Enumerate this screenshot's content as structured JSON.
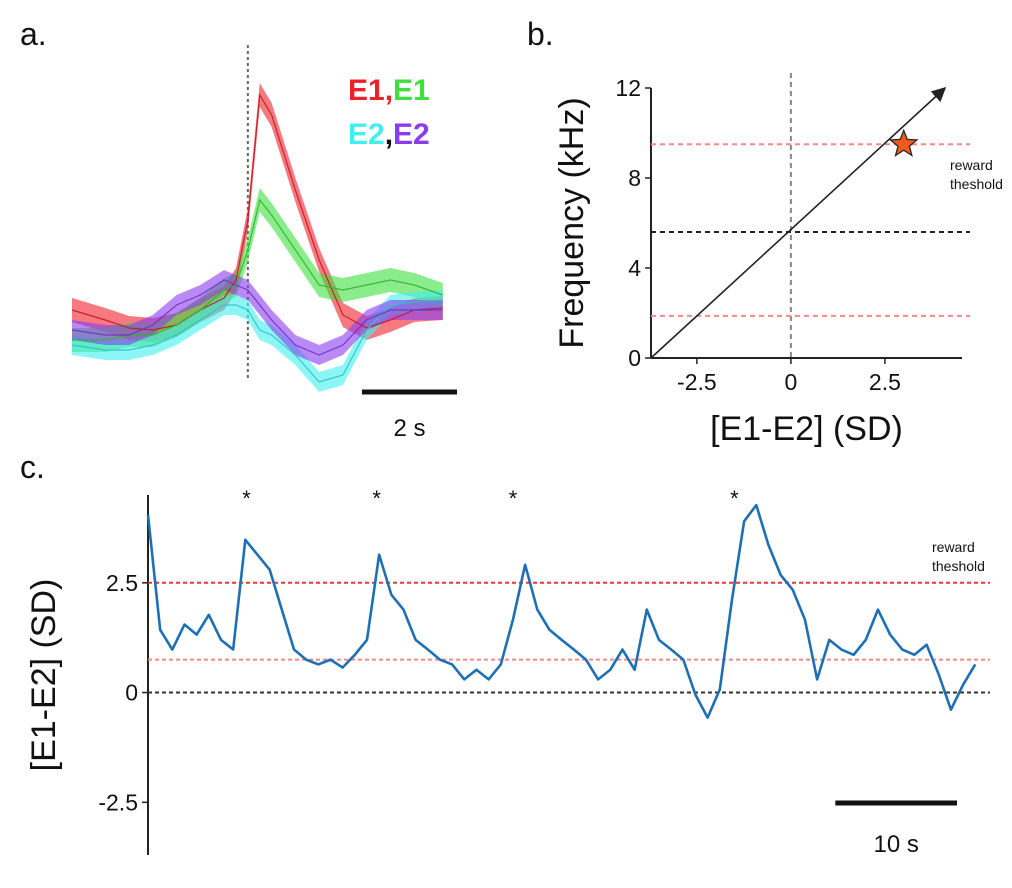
{
  "chart_data": [
    {
      "type": "band-line",
      "panel_label": "a.",
      "x": [
        -3.7,
        -3,
        -2.5,
        -2,
        -1.5,
        -1,
        -0.5,
        -0.25,
        0,
        0.25,
        0.5,
        1,
        1.5,
        2,
        2.5,
        3,
        3.5,
        4.1
      ],
      "xlim": [
        -3.7,
        4.4
      ],
      "ylim": [
        -0.2,
        3.2
      ],
      "vline": 0,
      "legend_separator": ",",
      "series": [
        {
          "name": "E1",
          "color": "#f0202a",
          "error": 0.12,
          "values": [
            0.7,
            0.6,
            0.52,
            0.5,
            0.55,
            0.7,
            0.82,
            1.0,
            1.6,
            2.85,
            2.65,
            1.9,
            1.2,
            0.65,
            0.52,
            0.6,
            0.7,
            0.72
          ]
        },
        {
          "name": "E1",
          "color": "#3ee03e",
          "error": 0.12,
          "values": [
            0.4,
            0.4,
            0.45,
            0.45,
            0.55,
            0.7,
            0.9,
            0.95,
            1.3,
            1.8,
            1.65,
            1.3,
            0.95,
            0.9,
            0.95,
            1.0,
            0.95,
            0.85
          ]
        },
        {
          "name": "E2",
          "color": "#40f0f0",
          "error": 0.1,
          "values": [
            0.35,
            0.3,
            0.3,
            0.35,
            0.45,
            0.6,
            0.75,
            0.75,
            0.7,
            0.5,
            0.45,
            0.25,
            -0.02,
            0.05,
            0.5,
            0.75,
            0.78,
            0.8
          ]
        },
        {
          "name": "E2",
          "color": "#8a3cf0",
          "error": 0.1,
          "values": [
            0.5,
            0.45,
            0.45,
            0.55,
            0.75,
            0.85,
            1.0,
            0.95,
            0.9,
            0.75,
            0.6,
            0.35,
            0.25,
            0.35,
            0.6,
            0.7,
            0.7,
            0.7
          ]
        }
      ],
      "scalebar": {
        "length": 2,
        "label": "2 s"
      }
    },
    {
      "type": "line",
      "panel_label": "b.",
      "xlabel": "[E1-E2] (SD)",
      "ylabel": "Frequency (kHz)",
      "xlim": [
        -3.72,
        4.55
      ],
      "ylim": [
        0,
        12
      ],
      "xticks": [
        -2.5,
        0,
        2.5
      ],
      "yticks": [
        0,
        4,
        8,
        12
      ],
      "x": [
        -3.72,
        4.1
      ],
      "values": [
        0,
        12
      ],
      "color": "#222222",
      "vline": 0,
      "hlines": [
        {
          "value": 9.5,
          "color": "#f88888"
        },
        {
          "value": 5.6,
          "color": "#222222"
        },
        {
          "value": 1.87,
          "color": "#f88888"
        }
      ],
      "point": {
        "x": 3,
        "y": 9.5,
        "color": "#f05a1e"
      },
      "annotation": [
        "reward",
        "theshold"
      ]
    },
    {
      "type": "line",
      "panel_label": "c.",
      "ylabel": "[E1-E2] (SD)",
      "xlim": [
        0,
        68.8
      ],
      "ylim": [
        -3.7,
        4.5
      ],
      "yticks": [
        2.5,
        0,
        -2.5
      ],
      "color": "#1f6fb4",
      "x": [
        0,
        1,
        2,
        3,
        4,
        5,
        6,
        7,
        8,
        10,
        11,
        12,
        13,
        14,
        15,
        16,
        17,
        18,
        19,
        20,
        21,
        22,
        23,
        24,
        25,
        26,
        27,
        28,
        29,
        30,
        31,
        32,
        33,
        34,
        35,
        36,
        37,
        38,
        39,
        40,
        41,
        42,
        43,
        44,
        45,
        46,
        47,
        48,
        49,
        50,
        51,
        52,
        53,
        54,
        55,
        56,
        57,
        58,
        59,
        60,
        61,
        62,
        63,
        64,
        65,
        66,
        67,
        68
      ],
      "values": [
        4.05,
        1.43,
        0.98,
        1.55,
        1.32,
        1.77,
        1.2,
        0.98,
        3.48,
        2.8,
        1.89,
        0.98,
        0.75,
        0.64,
        0.75,
        0.57,
        0.86,
        1.2,
        3.14,
        2.23,
        1.89,
        1.2,
        0.98,
        0.75,
        0.64,
        0.3,
        0.52,
        0.3,
        0.64,
        1.66,
        2.91,
        1.89,
        1.43,
        1.2,
        0.98,
        0.75,
        0.3,
        0.52,
        0.98,
        0.52,
        1.89,
        1.2,
        0.98,
        0.75,
        -0.05,
        -0.57,
        0.07,
        2.11,
        3.9,
        4.27,
        3.36,
        2.68,
        2.34,
        1.66,
        0.3,
        1.2,
        0.98,
        0.86,
        1.2,
        1.89,
        1.32,
        0.98,
        0.86,
        1.09,
        0.41,
        -0.39,
        0.18,
        0.64
      ],
      "hlines": [
        {
          "value": 2.5,
          "color": "#ee3333"
        },
        {
          "value": 0.75,
          "color": "#f88888"
        },
        {
          "value": 0,
          "color": "#333333"
        }
      ],
      "events": [
        8.1,
        18.8,
        30,
        48.2
      ],
      "event_color": "#ee3333",
      "annotation": [
        "reward",
        "theshold"
      ],
      "scalebar": {
        "length": 10,
        "label": "10 s"
      }
    }
  ]
}
